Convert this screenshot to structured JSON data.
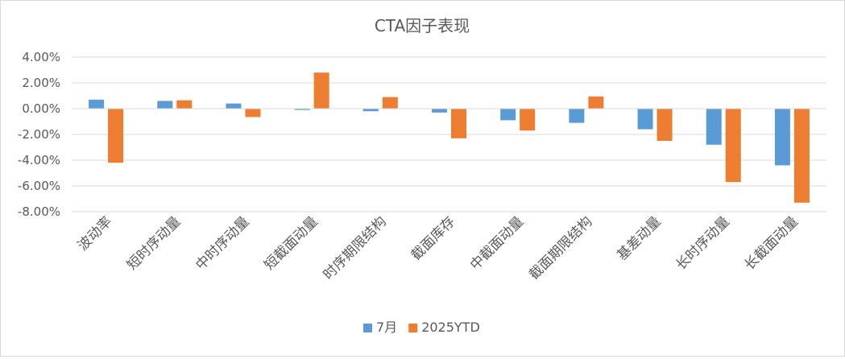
{
  "chart_data": {
    "type": "bar",
    "title": "CTA因子表现",
    "xlabel": "",
    "ylabel": "",
    "ylim": [
      -8,
      4
    ],
    "yticks": [
      4,
      2,
      0,
      -2,
      -4,
      -6,
      -8
    ],
    "ytick_labels": [
      "4.00%",
      "2.00%",
      "0.00%",
      "-2.00%",
      "-4.00%",
      "-6.00%",
      "-8.00%"
    ],
    "grid": true,
    "legend_position": "bottom",
    "categories": [
      "波动率",
      "短时序动量",
      "中时序动量",
      "短截面动量",
      "时序期限结构",
      "截面库存",
      "中截面动量",
      "截面期限结构",
      "基差动量",
      "长时序动量",
      "长截面动量"
    ],
    "series": [
      {
        "name": "7月",
        "color": "#5b9bd5",
        "values": [
          0.7,
          0.6,
          0.4,
          -0.1,
          -0.2,
          -0.3,
          -0.9,
          -1.1,
          -1.6,
          -2.8,
          -4.4
        ]
      },
      {
        "name": "2025YTD",
        "color": "#ed7d31",
        "values": [
          -4.2,
          0.65,
          -0.65,
          2.8,
          0.9,
          -2.3,
          -1.7,
          0.95,
          -2.5,
          -5.7,
          -7.3
        ]
      }
    ]
  }
}
